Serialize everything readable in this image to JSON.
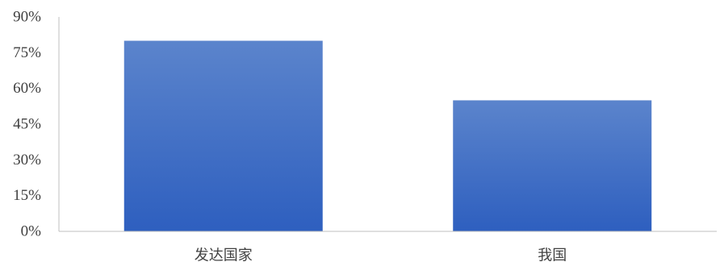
{
  "chart_data": {
    "type": "bar",
    "title": "",
    "xlabel": "",
    "ylabel": "",
    "categories": [
      "发达国家",
      "我国"
    ],
    "values": [
      80,
      55
    ],
    "ylim": [
      0,
      90
    ],
    "yticks": [
      0,
      15,
      30,
      45,
      60,
      75,
      90
    ],
    "ytick_labels": [
      "0%",
      "15%",
      "30%",
      "45%",
      "60%",
      "75%",
      "90%"
    ],
    "grid": false,
    "legend": "none",
    "bar_color_top": "#5b84cc",
    "bar_color_bottom": "#2e5fbf",
    "axis_color": "#bfbfbf",
    "text_color": "#404040"
  }
}
